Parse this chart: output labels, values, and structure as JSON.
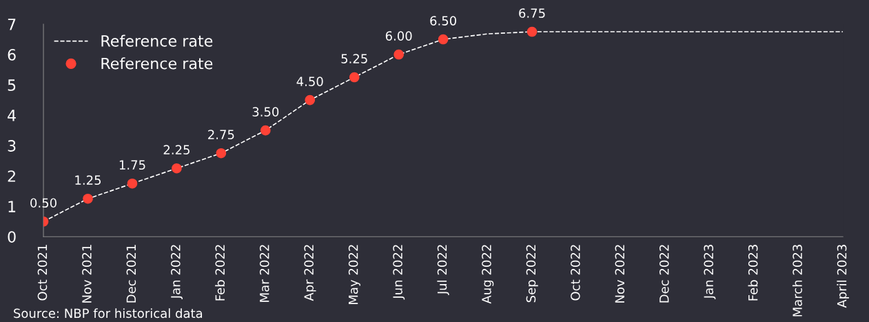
{
  "chart_data": {
    "type": "line",
    "categories": [
      "Oct 2021",
      "Nov 2021",
      "Dec 2021",
      "Jan 2022",
      "Feb 2022",
      "Mar 2022",
      "Apr 2022",
      "May 2022",
      "Jun 2022",
      "Jul 2022",
      "Aug 2022",
      "Sep 2022",
      "Oct 2022",
      "Nov 2022",
      "Dec 2022",
      "Jan 2023",
      "Feb 2023",
      "March 2023",
      "April 2023"
    ],
    "series": [
      {
        "name": "Reference rate",
        "color": "#ffffff",
        "line_style": "dashed",
        "marker": "none",
        "values": [
          0.5,
          1.25,
          1.75,
          2.25,
          2.75,
          3.5,
          4.5,
          5.25,
          6.0,
          6.5,
          6.68,
          6.75,
          6.75,
          6.75,
          6.75,
          6.75,
          6.75,
          6.75,
          6.75
        ]
      },
      {
        "name": "Reference rate",
        "type": "scatter",
        "color": "#ff4236",
        "marker": "circle",
        "values": [
          0.5,
          1.25,
          1.75,
          2.25,
          2.75,
          3.5,
          4.5,
          5.25,
          6.0,
          6.5,
          null,
          6.75,
          null,
          null,
          null,
          null,
          null,
          null,
          null
        ],
        "value_labels": [
          "0.50",
          "1.25",
          "1.75",
          "2.25",
          "2.75",
          "3.50",
          "4.50",
          "5.25",
          "6.00",
          "6.50",
          null,
          "6.75",
          null,
          null,
          null,
          null,
          null,
          null,
          null
        ]
      }
    ],
    "ylim": [
      0,
      7
    ],
    "yticks": [
      0,
      1,
      2,
      3,
      4,
      5,
      6,
      7
    ],
    "grid": false,
    "legend": "top left",
    "annotations": [
      "Source: NBP for historical data"
    ]
  }
}
